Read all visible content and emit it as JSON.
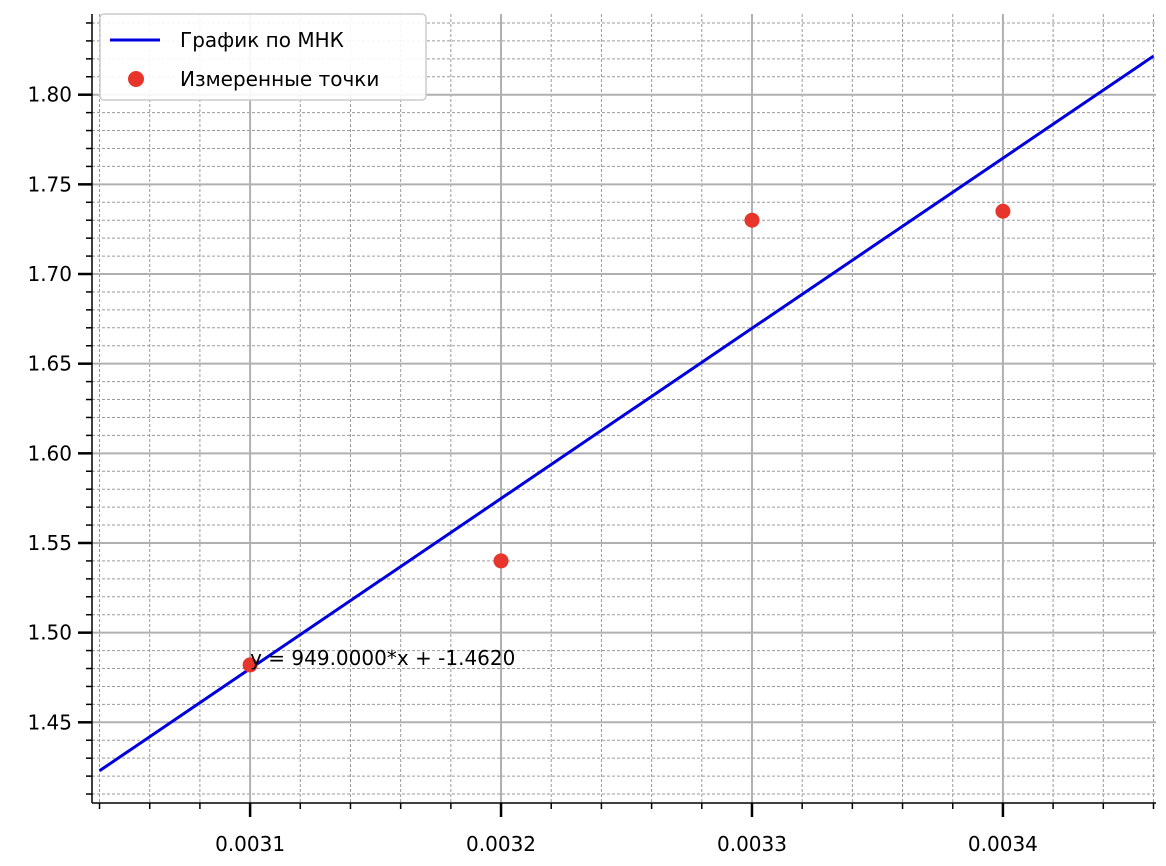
{
  "chart_data": {
    "type": "scatter",
    "title": "",
    "xlabel": "",
    "ylabel": "",
    "xlim": [
      0.003037,
      0.003461
    ],
    "ylim": [
      1.405,
      1.845
    ],
    "x_ticks": [
      0.0031,
      0.0032,
      0.0033,
      0.0034
    ],
    "x_tick_labels": [
      "0.0031",
      "0.0032",
      "0.0033",
      "0.0034"
    ],
    "y_ticks": [
      1.45,
      1.5,
      1.55,
      1.6,
      1.65,
      1.7,
      1.75,
      1.8
    ],
    "y_tick_labels": [
      "1.45",
      "1.50",
      "1.55",
      "1.60",
      "1.65",
      "1.70",
      "1.75",
      "1.80"
    ],
    "x_minor_step": 2e-05,
    "y_minor_step": 0.01,
    "grid": true,
    "legend_position": "top-left",
    "series": [
      {
        "name": "График по МНК",
        "kind": "line",
        "color": "#0000dd",
        "slope": 949.0,
        "intercept": -1.462,
        "x_range": [
          0.00304,
          0.00346
        ]
      },
      {
        "name": "Измеренные точки",
        "kind": "scatter",
        "color": "#e8352b",
        "points": [
          {
            "x": 0.0031,
            "y": 1.482
          },
          {
            "x": 0.0032,
            "y": 1.54
          },
          {
            "x": 0.0033,
            "y": 1.73
          },
          {
            "x": 0.0034,
            "y": 1.735
          }
        ]
      }
    ],
    "annotation": {
      "text": "y = 949.0000*x + -1.4620",
      "x": 0.0031,
      "y": 1.482
    }
  }
}
